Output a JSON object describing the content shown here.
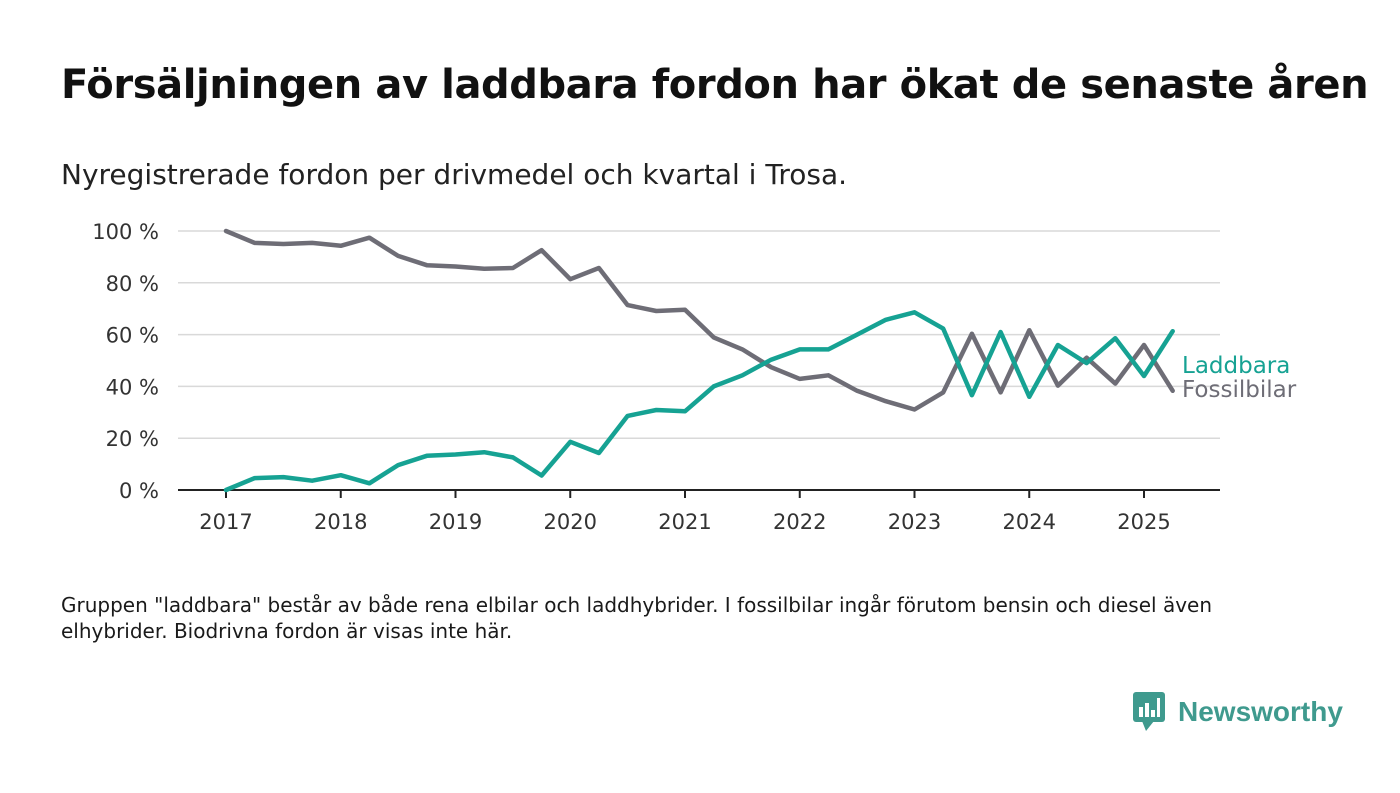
{
  "header": {
    "title": "Försäljningen av laddbara fordon har ökat de senaste åren",
    "subtitle": "Nyregistrerade fordon per drivmedel och kvartal i Trosa."
  },
  "footer": {
    "note": "Gruppen \"laddbara\" består av både rena elbilar och laddhybrider. I fossilbilar ingår förutom bensin och diesel även elhybrider. Biodrivna fordon är visas inte här.",
    "brand": "Newsworthy"
  },
  "colors": {
    "laddbara": "#16a293",
    "fossilbilar": "#6e6d76",
    "grid": "#d9d9d9",
    "axis": "#222222",
    "brand": "#3f9a8e"
  },
  "chart_data": {
    "type": "line",
    "xlabel": "",
    "ylabel": "",
    "x_ticks": [
      "2017",
      "2018",
      "2019",
      "2020",
      "2021",
      "2022",
      "2023",
      "2024",
      "2025"
    ],
    "y_ticks": [
      "0 %",
      "20 %",
      "40 %",
      "60 %",
      "80 %",
      "100 %"
    ],
    "ylim": [
      0,
      100
    ],
    "grid": true,
    "legend": "inline-right",
    "x": [
      "2017 Q1",
      "2017 Q2",
      "2017 Q3",
      "2017 Q4",
      "2018 Q1",
      "2018 Q2",
      "2018 Q3",
      "2018 Q4",
      "2019 Q1",
      "2019 Q2",
      "2019 Q3",
      "2019 Q4",
      "2020 Q1",
      "2020 Q2",
      "2020 Q3",
      "2020 Q4",
      "2021 Q1",
      "2021 Q2",
      "2021 Q3",
      "2021 Q4",
      "2022 Q1",
      "2022 Q2",
      "2022 Q3",
      "2022 Q4",
      "2023 Q1",
      "2023 Q2",
      "2023 Q3",
      "2023 Q4",
      "2024 Q1",
      "2024 Q2",
      "2024 Q3",
      "2024 Q4",
      "2025 Q1",
      "2025 Q2"
    ],
    "series": [
      {
        "name": "Laddbara",
        "values": [
          0,
          4.6,
          5.0,
          3.6,
          5.7,
          2.6,
          9.6,
          13.2,
          13.7,
          14.6,
          12.6,
          5.6,
          18.6,
          14.3,
          28.6,
          30.9,
          30.4,
          40.0,
          44.3,
          50.3,
          54.3,
          54.3,
          60.0,
          65.7,
          68.6,
          62.3,
          36.6,
          61.0,
          36.0,
          56.0,
          49.0,
          58.6,
          44.0,
          61.3
        ]
      },
      {
        "name": "Fossilbilar",
        "values": [
          100,
          95.4,
          95.0,
          95.4,
          94.3,
          97.4,
          90.4,
          86.8,
          86.3,
          85.4,
          85.7,
          92.6,
          81.4,
          85.7,
          71.4,
          69.1,
          69.6,
          58.9,
          54.3,
          47.4,
          42.9,
          44.3,
          38.3,
          34.3,
          31.1,
          37.7,
          60.3,
          37.7,
          61.7,
          40.3,
          51.1,
          41.1,
          56.0,
          38.3
        ]
      }
    ]
  }
}
